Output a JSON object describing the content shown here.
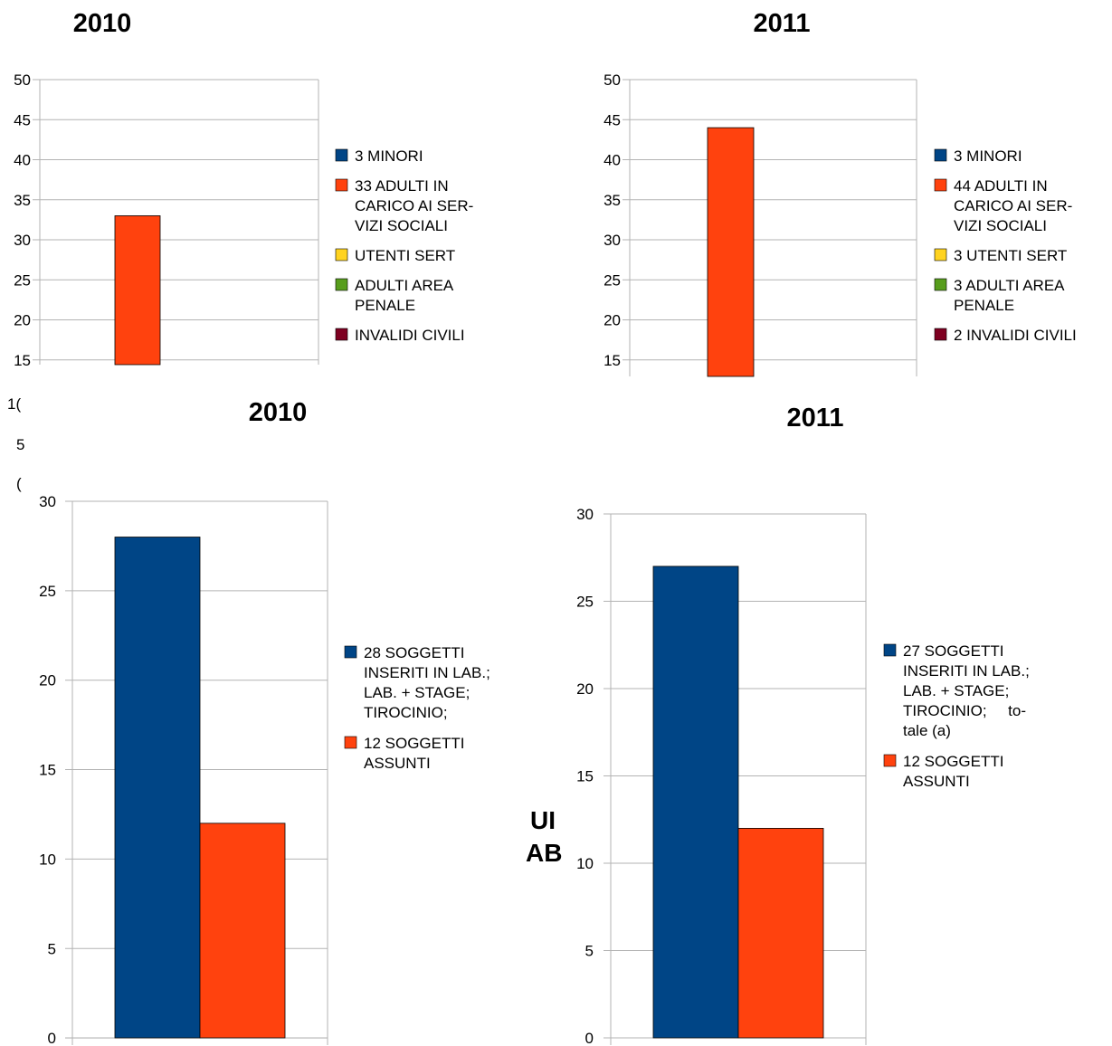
{
  "chart_data": [
    {
      "type": "bar",
      "title": "2010",
      "yticks": [
        "15",
        "20",
        "25",
        "30",
        "35",
        "40",
        "45",
        "50"
      ],
      "ylim_visible": [
        14.5,
        50
      ],
      "series": [
        {
          "name": "3 MINORI",
          "value": 3,
          "color": "#004586",
          "legend_lines": [
            "3 MINORI"
          ]
        },
        {
          "name": "33 ADULTI IN CARICO AI SERVIZI SOCIALI",
          "value": 33,
          "color": "#ff420e",
          "legend_lines": [
            "33 ADULTI IN",
            "CARICO AI SER-",
            "VIZI SOCIALI"
          ]
        },
        {
          "name": "UTENTI SERT",
          "value": 0,
          "color": "#ffd320",
          "legend_lines": [
            "UTENTI SERT"
          ]
        },
        {
          "name": "ADULTI AREA PENALE",
          "value": 0,
          "color": "#579d1c",
          "legend_lines": [
            "ADULTI AREA",
            "PENALE"
          ]
        },
        {
          "name": "INVALIDI CIVILI",
          "value": 0,
          "color": "#7e0021",
          "legend_lines": [
            "INVALIDI CIVILI"
          ]
        }
      ],
      "visible_bars": [
        {
          "series": 1,
          "value": 33
        }
      ],
      "legend": "right"
    },
    {
      "type": "bar",
      "title": "2011",
      "yticks": [
        "15",
        "20",
        "25",
        "30",
        "35",
        "40",
        "45",
        "50"
      ],
      "ylim_visible": [
        12.5,
        50
      ],
      "series": [
        {
          "name": "3 MINORI",
          "value": 3,
          "color": "#004586",
          "legend_lines": [
            "3 MINORI"
          ]
        },
        {
          "name": "44 ADULTI IN CARICO AI SERVIZI SOCIALI",
          "value": 44,
          "color": "#ff420e",
          "legend_lines": [
            "44 ADULTI IN",
            "CARICO AI SER-",
            "VIZI SOCIALI"
          ]
        },
        {
          "name": "3 UTENTI SERT",
          "value": 3,
          "color": "#ffd320",
          "legend_lines": [
            "3 UTENTI SERT"
          ]
        },
        {
          "name": "3 ADULTI AREA PENALE",
          "value": 3,
          "color": "#579d1c",
          "legend_lines": [
            "3 ADULTI AREA",
            "PENALE"
          ]
        },
        {
          "name": "2 INVALIDI CIVILI",
          "value": 2,
          "color": "#7e0021",
          "legend_lines": [
            "2 INVALIDI CIVILI"
          ]
        }
      ],
      "visible_bars": [
        {
          "series": 1,
          "value": 44
        }
      ],
      "legend": "right"
    },
    {
      "type": "bar",
      "title": "2010",
      "yticks": [
        "0",
        "5",
        "10",
        "15",
        "20",
        "25",
        "30"
      ],
      "ylim": [
        0,
        30
      ],
      "series": [
        {
          "name": "28 SOGGETTI INSERITI IN LAB.; LAB. + STAGE; TIROCINIO;",
          "value": 28,
          "color": "#004586",
          "legend_lines": [
            "28 SOGGETTI",
            "INSERITI IN LAB.;",
            "LAB. + STAGE;",
            "TIROCINIO;"
          ]
        },
        {
          "name": "12 SOGGETTI ASSUNTI",
          "value": 12,
          "color": "#ff420e",
          "legend_lines": [
            "12 SOGGETTI",
            "ASSUNTI"
          ]
        }
      ],
      "legend": "right"
    },
    {
      "type": "bar",
      "title": "2011",
      "yticks": [
        "0",
        "5",
        "10",
        "15",
        "20",
        "25",
        "30"
      ],
      "ylim": [
        0,
        30
      ],
      "series": [
        {
          "name": "27 SOGGETTI INSERITI IN LAB.; LAB. + STAGE; TIROCINIO; totale (a)",
          "value": 27,
          "color": "#004586",
          "legend_lines": [
            "27 SOGGETTI",
            "INSERITI IN LAB.;",
            "LAB. + STAGE;",
            "TIROCINIO;     to-",
            "tale (a)"
          ]
        },
        {
          "name": "12 SOGGETTI ASSUNTI",
          "value": 12,
          "color": "#ff420e",
          "legend_lines": [
            "12 SOGGETTI",
            "ASSUNTI"
          ]
        }
      ],
      "legend": "right"
    }
  ],
  "fragments": {
    "left_cut": [
      "1(",
      "5",
      "("
    ],
    "middle_cut": [
      "UI",
      "AB"
    ]
  }
}
